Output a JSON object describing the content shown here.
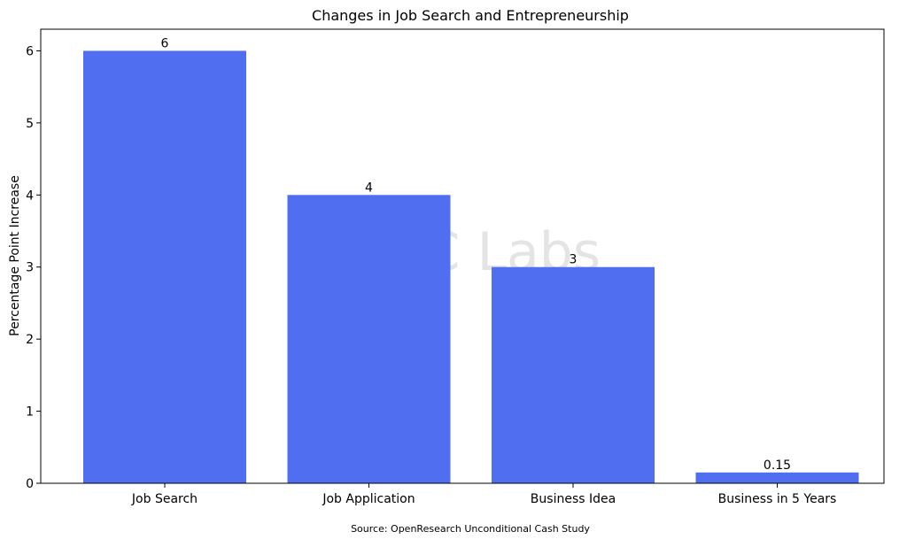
{
  "chart_data": {
    "type": "bar",
    "title": "Changes in Job Search and Entrepreneurship",
    "xlabel": "",
    "ylabel": "Percentage Point Increase",
    "categories": [
      "Job Search",
      "Job Application",
      "Business Idea",
      "Business in 5 Years"
    ],
    "values": [
      6,
      4,
      3,
      0.15
    ],
    "data_labels": [
      "6",
      "4",
      "3",
      "0.15"
    ],
    "ylim": [
      0,
      6.3
    ],
    "yticks": [
      0,
      1,
      2,
      3,
      4,
      5,
      6
    ],
    "grid": false,
    "legend": "none",
    "bar_color": "#4f6ef0",
    "source": "Source: OpenResearch Unconditional Cash Study",
    "watermark": "OGC Labs"
  }
}
